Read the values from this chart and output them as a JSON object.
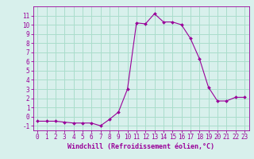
{
  "x": [
    0,
    1,
    2,
    3,
    4,
    5,
    6,
    7,
    8,
    9,
    10,
    11,
    12,
    13,
    14,
    15,
    16,
    17,
    18,
    19,
    20,
    21,
    22,
    23
  ],
  "y": [
    -0.5,
    -0.5,
    -0.5,
    -0.6,
    -0.7,
    -0.7,
    -0.7,
    -1.0,
    -0.3,
    0.5,
    3.0,
    10.2,
    10.1,
    11.2,
    10.3,
    10.3,
    10.0,
    8.5,
    6.3,
    3.2,
    1.7,
    1.7,
    2.1,
    2.1
  ],
  "line_color": "#990099",
  "marker_color": "#990099",
  "bg_color": "#d8f0ec",
  "grid_color": "#aaddcc",
  "xlabel": "Windchill (Refroidissement éolien,°C)",
  "xlabel_color": "#990099",
  "tick_color": "#990099",
  "ylim": [
    -1.5,
    12.0
  ],
  "xlim": [
    -0.5,
    23.5
  ],
  "yticks": [
    -1,
    0,
    1,
    2,
    3,
    4,
    5,
    6,
    7,
    8,
    9,
    10,
    11
  ],
  "xticks": [
    0,
    1,
    2,
    3,
    4,
    5,
    6,
    7,
    8,
    9,
    10,
    11,
    12,
    13,
    14,
    15,
    16,
    17,
    18,
    19,
    20,
    21,
    22,
    23
  ],
  "font_size": 5.5,
  "xlabel_fontsize": 6.0
}
